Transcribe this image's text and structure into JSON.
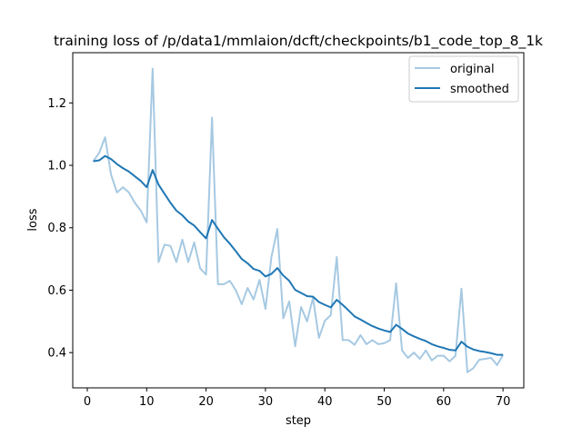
{
  "chart_data": {
    "type": "line",
    "title": "training loss of /p/data1/mmlaion/dcft/checkpoints/b1_code_top_8_1k",
    "xlabel": "step",
    "ylabel": "loss",
    "xlim": [
      -2.45,
      73.5
    ],
    "ylim": [
      0.287,
      1.361
    ],
    "xticks": [
      0,
      10,
      20,
      30,
      40,
      50,
      60,
      70
    ],
    "xtick_labels": [
      "0",
      "10",
      "20",
      "30",
      "40",
      "50",
      "60",
      "70"
    ],
    "yticks": [
      0.4,
      0.6,
      0.8,
      1.0,
      1.2
    ],
    "ytick_labels": [
      "0.4",
      "0.6",
      "0.8",
      "1.0",
      "1.2"
    ],
    "grid": false,
    "legend_position": "top-right",
    "x": [
      1,
      2,
      3,
      4,
      5,
      6,
      7,
      8,
      9,
      10,
      11,
      12,
      13,
      14,
      15,
      16,
      17,
      18,
      19,
      20,
      21,
      22,
      23,
      24,
      25,
      26,
      27,
      28,
      29,
      30,
      31,
      32,
      33,
      34,
      35,
      36,
      37,
      38,
      39,
      40,
      41,
      42,
      43,
      44,
      45,
      46,
      47,
      48,
      49,
      50,
      51,
      52,
      53,
      54,
      55,
      56,
      57,
      58,
      59,
      60,
      61,
      62,
      63,
      64,
      65,
      66,
      67,
      68,
      69,
      70
    ],
    "series": [
      {
        "name": "original",
        "color": "#a6c9e2",
        "values": [
          1.013,
          1.04,
          1.09,
          0.97,
          0.913,
          0.93,
          0.913,
          0.88,
          0.855,
          0.817,
          1.31,
          0.69,
          0.746,
          0.742,
          0.69,
          0.762,
          0.69,
          0.753,
          0.67,
          0.65,
          1.153,
          0.619,
          0.619,
          0.63,
          0.6,
          0.555,
          0.607,
          0.57,
          0.633,
          0.54,
          0.706,
          0.796,
          0.51,
          0.564,
          0.42,
          0.546,
          0.5,
          0.575,
          0.447,
          0.502,
          0.52,
          0.706,
          0.44,
          0.44,
          0.425,
          0.456,
          0.427,
          0.44,
          0.427,
          0.43,
          0.44,
          0.622,
          0.407,
          0.383,
          0.4,
          0.38,
          0.407,
          0.375,
          0.39,
          0.39,
          0.372,
          0.39,
          0.605,
          0.337,
          0.35,
          0.377,
          0.38,
          0.383,
          0.36,
          0.392
        ]
      },
      {
        "name": "smoothed",
        "color": "#1f77b4",
        "values": [
          1.013,
          1.016,
          1.03,
          1.02,
          1.004,
          0.991,
          0.98,
          0.965,
          0.95,
          0.93,
          0.985,
          0.938,
          0.909,
          0.88,
          0.855,
          0.84,
          0.82,
          0.807,
          0.786,
          0.766,
          0.825,
          0.797,
          0.77,
          0.749,
          0.725,
          0.7,
          0.686,
          0.668,
          0.662,
          0.644,
          0.652,
          0.671,
          0.647,
          0.63,
          0.601,
          0.591,
          0.581,
          0.579,
          0.562,
          0.553,
          0.545,
          0.569,
          0.553,
          0.535,
          0.516,
          0.506,
          0.495,
          0.485,
          0.477,
          0.471,
          0.466,
          0.489,
          0.476,
          0.461,
          0.452,
          0.444,
          0.437,
          0.427,
          0.42,
          0.415,
          0.409,
          0.407,
          0.435,
          0.419,
          0.41,
          0.405,
          0.402,
          0.398,
          0.393,
          0.393
        ]
      }
    ]
  }
}
